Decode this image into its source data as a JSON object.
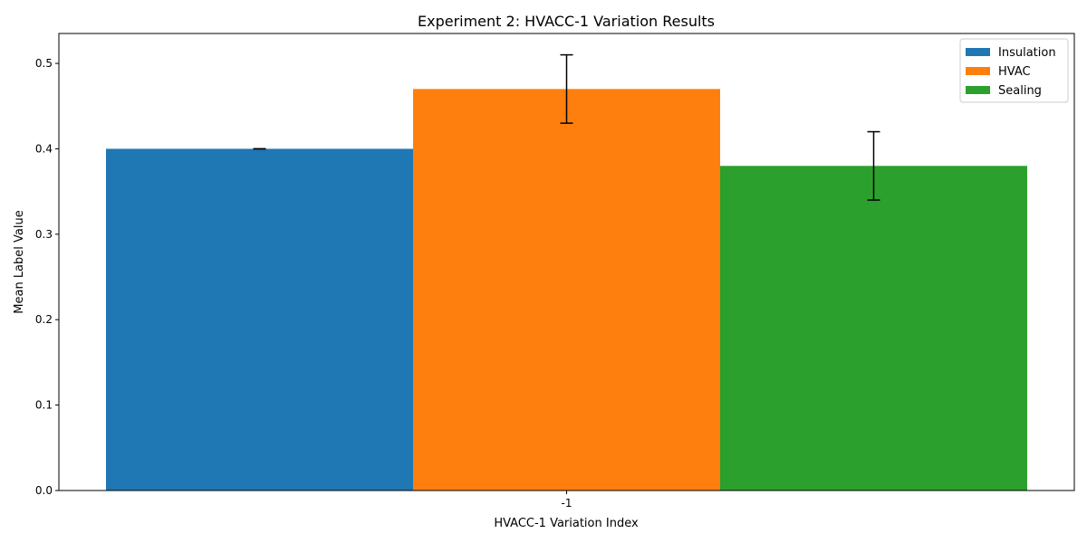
{
  "chart_data": {
    "type": "bar",
    "title": "Experiment 2: HVACC-1 Variation Results",
    "xlabel": "HVACC-1 Variation Index",
    "ylabel": "Mean Label Value",
    "categories": [
      "-1"
    ],
    "ylim": [
      0,
      0.535
    ],
    "yticks": [
      "0.0",
      "0.1",
      "0.2",
      "0.3",
      "0.4",
      "0.5"
    ],
    "ytick_values": [
      0,
      0.1,
      0.2,
      0.3,
      0.4,
      0.5
    ],
    "grid": false,
    "legend_position": "top-right",
    "series": [
      {
        "name": "Insulation",
        "values": [
          0.4
        ],
        "error": [
          0.0
        ],
        "color": "#1f77b4"
      },
      {
        "name": "HVAC",
        "values": [
          0.47
        ],
        "error": [
          0.04
        ],
        "color": "#ff7f0e"
      },
      {
        "name": "Sealing",
        "values": [
          0.38
        ],
        "error": [
          0.04
        ],
        "color": "#2ca02c"
      }
    ]
  }
}
